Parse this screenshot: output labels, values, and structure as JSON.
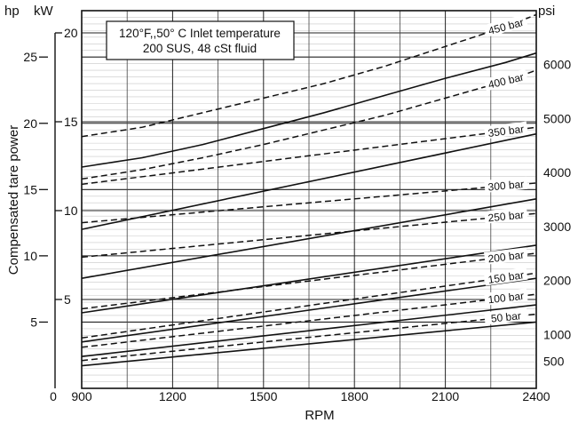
{
  "chart_data": {
    "type": "line",
    "xlabel": "RPM",
    "ylabel": "Compensated tare power",
    "x_ticks": [
      "900",
      "1200",
      "1500",
      "1800",
      "2100",
      "2400"
    ],
    "xlim": [
      900,
      2400
    ],
    "ylim_hp": [
      0,
      28.5
    ],
    "ylim_kw": [
      0,
      21.25
    ],
    "ylim_psi": [
      0,
      7000
    ],
    "left_axis_unit_hp": "hp",
    "left_axis_unit_kw": "kW",
    "right_axis_unit": "psi",
    "hp_ticks": [
      "5",
      "10",
      "15",
      "20",
      "25"
    ],
    "kw_ticks": [
      "0",
      "5",
      "10",
      "15",
      "20"
    ],
    "psi_ticks": [
      "500",
      "1000",
      "2000",
      "3000",
      "4000",
      "5000",
      "6000"
    ],
    "annotation_line1": "120°F,,50° C Inlet temperature",
    "annotation_line2": "200 SUS, 48 cSt fluid",
    "series_solid": [
      {
        "psi": "6000",
        "x": [
          900,
          1100,
          1300,
          1500,
          1700,
          1900,
          2100,
          2300,
          2400
        ],
        "y_hp": [
          16.7,
          17.4,
          18.4,
          19.6,
          20.8,
          22.1,
          23.4,
          24.6,
          25.3
        ]
      },
      {
        "psi": "5000",
        "x": [
          900,
          2400
        ],
        "y_hp": [
          12.0,
          19.2
        ]
      },
      {
        "psi": "4000",
        "x": [
          900,
          2400
        ],
        "y_hp": [
          8.3,
          14.3
        ]
      },
      {
        "psi": "3000",
        "x": [
          900,
          2400
        ],
        "y_hp": [
          5.7,
          10.8
        ]
      },
      {
        "psi": "2000",
        "x": [
          900,
          2400
        ],
        "y_hp": [
          3.5,
          8.3
        ]
      },
      {
        "psi": "1000",
        "x": [
          900,
          2400
        ],
        "y_hp": [
          2.4,
          6.3
        ]
      },
      {
        "psi": "500",
        "x": [
          900,
          2400
        ],
        "y_hp": [
          1.7,
          5.0
        ]
      }
    ],
    "series_dashed": [
      {
        "name": "450 bar",
        "x": [
          900,
          1100,
          1300,
          1500,
          1700,
          1900,
          2100,
          2300,
          2400
        ],
        "y_hp": [
          19.0,
          19.7,
          20.8,
          21.9,
          23.0,
          24.3,
          25.8,
          27.3,
          28.2
        ]
      },
      {
        "name": "400 bar",
        "x": [
          900,
          1100,
          1300,
          1500,
          1700,
          1900,
          2100,
          2300,
          2400
        ],
        "y_hp": [
          15.8,
          16.5,
          17.4,
          18.4,
          19.5,
          20.6,
          21.9,
          23.2,
          24.0
        ]
      },
      {
        "name": "350 bar",
        "x": [
          900,
          2400
        ],
        "y_hp": [
          15.4,
          19.7
        ]
      },
      {
        "name": "300 bar",
        "x": [
          900,
          2400
        ],
        "y_hp": [
          12.5,
          15.5
        ]
      },
      {
        "name": "250 bar",
        "x": [
          900,
          2400
        ],
        "y_hp": [
          9.9,
          13.2
        ]
      },
      {
        "name": "200 bar",
        "x": [
          900,
          2400
        ],
        "y_hp": [
          6.0,
          10.2
        ]
      },
      {
        "name": "150 bar",
        "x": [
          900,
          2400
        ],
        "y_hp": [
          3.8,
          8.7
        ]
      },
      {
        "name": "100 bar",
        "x": [
          900,
          2400
        ],
        "y_hp": [
          3.1,
          7.1
        ]
      },
      {
        "name": "50 bar",
        "x": [
          900,
          2400
        ],
        "y_hp": [
          2.1,
          5.6
        ]
      }
    ]
  }
}
